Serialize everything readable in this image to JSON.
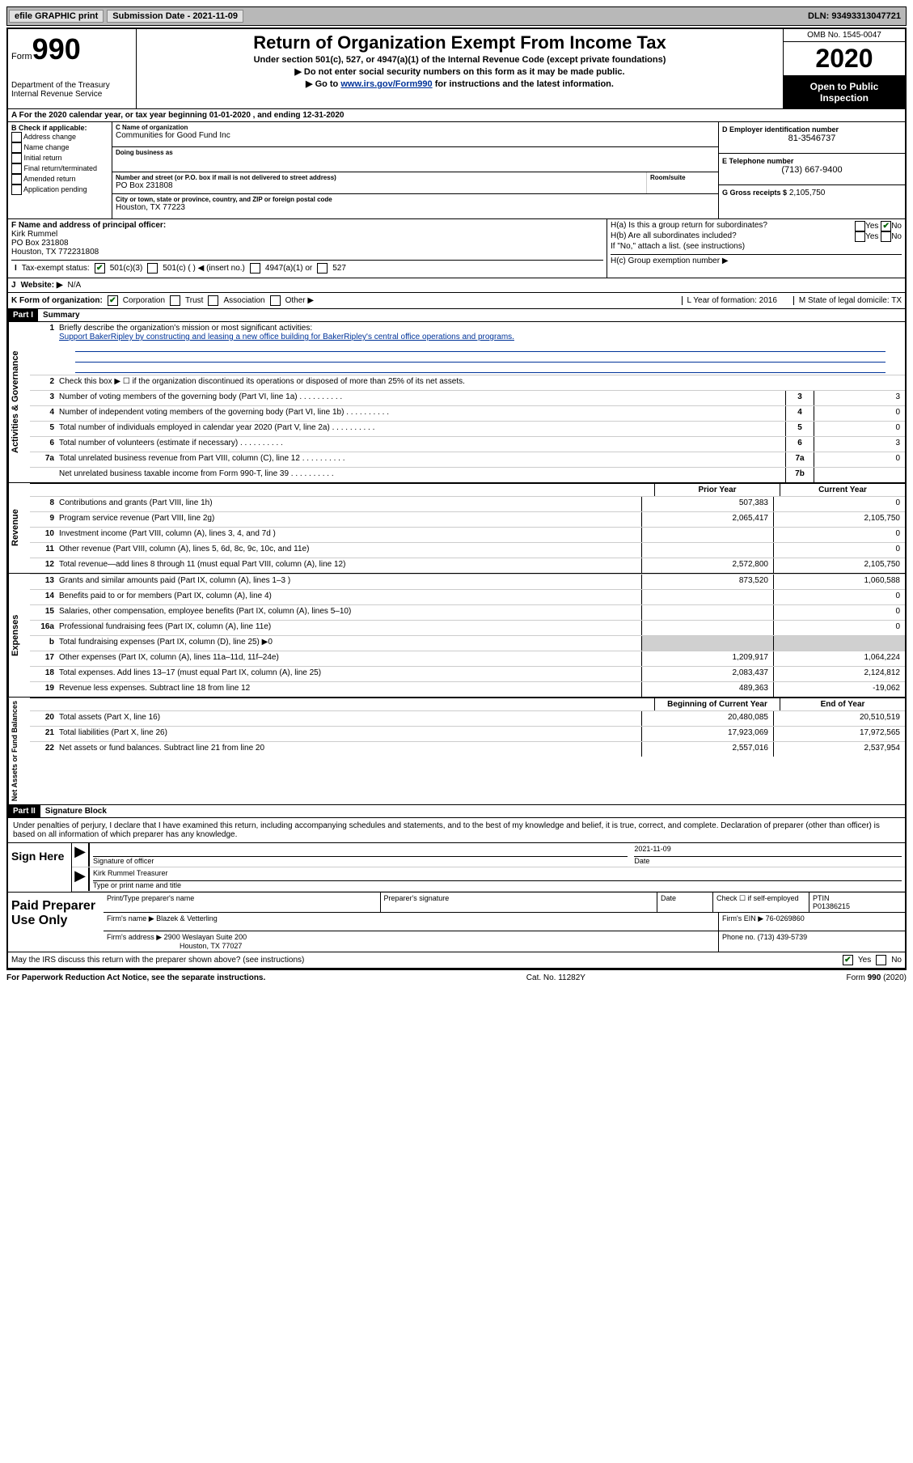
{
  "topbar": {
    "efile": "efile GRAPHIC print",
    "sub_label": "Submission Date - 2021-11-09",
    "dln": "DLN: 93493313047721"
  },
  "header": {
    "form_word": "Form",
    "form_num": "990",
    "dept": "Department of the Treasury\nInternal Revenue Service",
    "title": "Return of Organization Exempt From Income Tax",
    "subtitle": "Under section 501(c), 527, or 4947(a)(1) of the Internal Revenue Code (except private foundations)",
    "line1": "▶ Do not enter social security numbers on this form as it may be made public.",
    "line2a": "▶ Go to ",
    "line2b": "www.irs.gov/Form990",
    "line2c": " for instructions and the latest information.",
    "omb": "OMB No. 1545-0047",
    "year": "2020",
    "inspect": "Open to Public Inspection"
  },
  "rowA": "A For the 2020 calendar year, or tax year beginning 01-01-2020   , and ending 12-31-2020",
  "B": {
    "hdr": "B Check if applicable:",
    "items": [
      "Address change",
      "Name change",
      "Initial return",
      "Final return/terminated",
      "Amended return",
      "Application pending"
    ]
  },
  "C": {
    "name_lbl": "C Name of organization",
    "name": "Communities for Good Fund Inc",
    "dba_lbl": "Doing business as",
    "dba": "",
    "addr_lbl": "Number and street (or P.O. box if mail is not delivered to street address)",
    "room_lbl": "Room/suite",
    "addr": "PO Box 231808",
    "city_lbl": "City or town, state or province, country, and ZIP or foreign postal code",
    "city": "Houston, TX  77223"
  },
  "D": {
    "lbl": "D Employer identification number",
    "val": "81-3546737"
  },
  "E": {
    "lbl": "E Telephone number",
    "val": "(713) 667-9400"
  },
  "G": {
    "lbl": "G Gross receipts $",
    "val": "2,105,750"
  },
  "F": {
    "lbl": "F  Name and address of principal officer:",
    "name": "Kirk Rummel",
    "addr1": "PO Box 231808",
    "addr2": "Houston, TX  772231808"
  },
  "H": {
    "a": "H(a)  Is this a group return for subordinates?",
    "b": "H(b)  Are all subordinates included?",
    "note": "If \"No,\" attach a list. (see instructions)",
    "c": "H(c)  Group exemption number ▶",
    "yes": "Yes",
    "no": "No"
  },
  "I": {
    "lbl": "Tax-exempt status:",
    "o1": "501(c)(3)",
    "o2": "501(c) (  ) ◀ (insert no.)",
    "o3": "4947(a)(1) or",
    "o4": "527"
  },
  "J": {
    "lbl": "Website: ▶",
    "val": "N/A"
  },
  "K": {
    "lbl": "K Form of organization:",
    "o1": "Corporation",
    "o2": "Trust",
    "o3": "Association",
    "o4": "Other ▶",
    "L": "L Year of formation: 2016",
    "M": "M State of legal domicile: TX"
  },
  "partI": {
    "hdr": "Part I",
    "title": "Summary"
  },
  "section1": {
    "label": "Activities & Governance",
    "l1": "Briefly describe the organization's mission or most significant activities:",
    "l1v": "Support BakerRipley by constructing and leasing a new office building for BakerRipley's central office operations and programs.",
    "l2": "Check this box ▶ ☐  if the organization discontinued its operations or disposed of more than 25% of its net assets.",
    "lines": [
      {
        "n": "3",
        "d": "Number of voting members of the governing body (Part VI, line 1a)",
        "c": "3",
        "v": "3"
      },
      {
        "n": "4",
        "d": "Number of independent voting members of the governing body (Part VI, line 1b)",
        "c": "4",
        "v": "0"
      },
      {
        "n": "5",
        "d": "Total number of individuals employed in calendar year 2020 (Part V, line 2a)",
        "c": "5",
        "v": "0"
      },
      {
        "n": "6",
        "d": "Total number of volunteers (estimate if necessary)",
        "c": "6",
        "v": "3"
      },
      {
        "n": "7a",
        "d": "Total unrelated business revenue from Part VIII, column (C), line 12",
        "c": "7a",
        "v": "0"
      },
      {
        "n": "",
        "d": "Net unrelated business taxable income from Form 990-T, line 39",
        "c": "7b",
        "v": ""
      }
    ]
  },
  "headers2": {
    "prior": "Prior Year",
    "current": "Current Year",
    "boc": "Beginning of Current Year",
    "eoy": "End of Year"
  },
  "revenue": {
    "label": "Revenue",
    "lines": [
      {
        "n": "8",
        "d": "Contributions and grants (Part VIII, line 1h)",
        "v1": "507,383",
        "v2": "0"
      },
      {
        "n": "9",
        "d": "Program service revenue (Part VIII, line 2g)",
        "v1": "2,065,417",
        "v2": "2,105,750"
      },
      {
        "n": "10",
        "d": "Investment income (Part VIII, column (A), lines 3, 4, and 7d )",
        "v1": "",
        "v2": "0"
      },
      {
        "n": "11",
        "d": "Other revenue (Part VIII, column (A), lines 5, 6d, 8c, 9c, 10c, and 11e)",
        "v1": "",
        "v2": "0"
      },
      {
        "n": "12",
        "d": "Total revenue—add lines 8 through 11 (must equal Part VIII, column (A), line 12)",
        "v1": "2,572,800",
        "v2": "2,105,750"
      }
    ]
  },
  "expenses": {
    "label": "Expenses",
    "lines": [
      {
        "n": "13",
        "d": "Grants and similar amounts paid (Part IX, column (A), lines 1–3 )",
        "v1": "873,520",
        "v2": "1,060,588"
      },
      {
        "n": "14",
        "d": "Benefits paid to or for members (Part IX, column (A), line 4)",
        "v1": "",
        "v2": "0"
      },
      {
        "n": "15",
        "d": "Salaries, other compensation, employee benefits (Part IX, column (A), lines 5–10)",
        "v1": "",
        "v2": "0"
      },
      {
        "n": "16a",
        "d": "Professional fundraising fees (Part IX, column (A), line 11e)",
        "v1": "",
        "v2": "0"
      },
      {
        "n": "b",
        "d": "Total fundraising expenses (Part IX, column (D), line 25) ▶0",
        "v1": "shade",
        "v2": "shade"
      },
      {
        "n": "17",
        "d": "Other expenses (Part IX, column (A), lines 11a–11d, 11f–24e)",
        "v1": "1,209,917",
        "v2": "1,064,224"
      },
      {
        "n": "18",
        "d": "Total expenses. Add lines 13–17 (must equal Part IX, column (A), line 25)",
        "v1": "2,083,437",
        "v2": "2,124,812"
      },
      {
        "n": "19",
        "d": "Revenue less expenses. Subtract line 18 from line 12",
        "v1": "489,363",
        "v2": "-19,062"
      }
    ]
  },
  "netassets": {
    "label": "Net Assets or Fund Balances",
    "lines": [
      {
        "n": "20",
        "d": "Total assets (Part X, line 16)",
        "v1": "20,480,085",
        "v2": "20,510,519"
      },
      {
        "n": "21",
        "d": "Total liabilities (Part X, line 26)",
        "v1": "17,923,069",
        "v2": "17,972,565"
      },
      {
        "n": "22",
        "d": "Net assets or fund balances. Subtract line 21 from line 20",
        "v1": "2,557,016",
        "v2": "2,537,954"
      }
    ]
  },
  "partII": {
    "hdr": "Part II",
    "title": "Signature Block"
  },
  "perjury": "Under penalties of perjury, I declare that I have examined this return, including accompanying schedules and statements, and to the best of my knowledge and belief, it is true, correct, and complete. Declaration of preparer (other than officer) is based on all information of which preparer has any knowledge.",
  "sign": {
    "here": "Sign Here",
    "sig_lbl": "Signature of officer",
    "date_lbl": "Date",
    "date": "2021-11-09",
    "name": "Kirk Rummel  Treasurer",
    "name_lbl": "Type or print name and title"
  },
  "prep": {
    "here": "Paid Preparer Use Only",
    "pt_lbl": "Print/Type preparer's name",
    "ps_lbl": "Preparer's signature",
    "d_lbl": "Date",
    "chk": "Check ☐ if self-employed",
    "ptin_lbl": "PTIN",
    "ptin": "P01386215",
    "firm_lbl": "Firm's name    ▶",
    "firm": "Blazek & Vetterling",
    "ein_lbl": "Firm's EIN ▶",
    "ein": "76-0269860",
    "addr_lbl": "Firm's address ▶",
    "addr1": "2900 Weslayan Suite 200",
    "addr2": "Houston, TX  77027",
    "ph_lbl": "Phone no.",
    "ph": "(713) 439-5739"
  },
  "discuss": {
    "q": "May the IRS discuss this return with the preparer shown above? (see instructions)",
    "yes": "Yes",
    "no": "No"
  },
  "footer": {
    "l": "For Paperwork Reduction Act Notice, see the separate instructions.",
    "m": "Cat. No. 11282Y",
    "r": "Form 990 (2020)"
  }
}
